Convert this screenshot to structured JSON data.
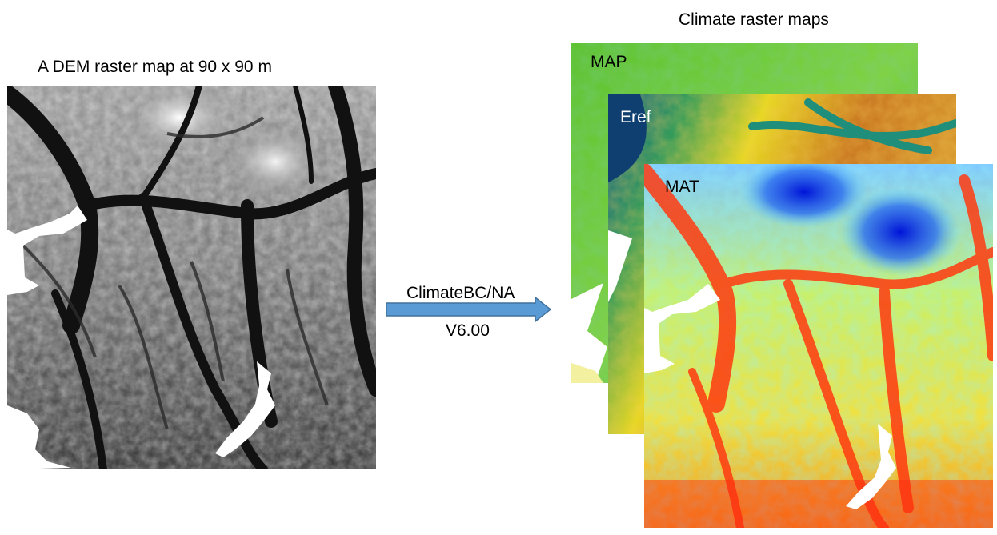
{
  "dem": {
    "title": "A DEM raster map at 90 x 90 m"
  },
  "process": {
    "line1": "ClimateBC/NA",
    "line2": "V6.00"
  },
  "climate": {
    "title": "Climate raster maps",
    "layers": [
      {
        "label": "MAP",
        "palette": "green"
      },
      {
        "label": "Eref",
        "palette": "green-yellow-brown"
      },
      {
        "label": "MAT",
        "palette": "blue-cyan-yellow-red"
      }
    ]
  },
  "colors": {
    "arrow_fill": "#5b9bd5",
    "arrow_stroke": "#41719c"
  }
}
